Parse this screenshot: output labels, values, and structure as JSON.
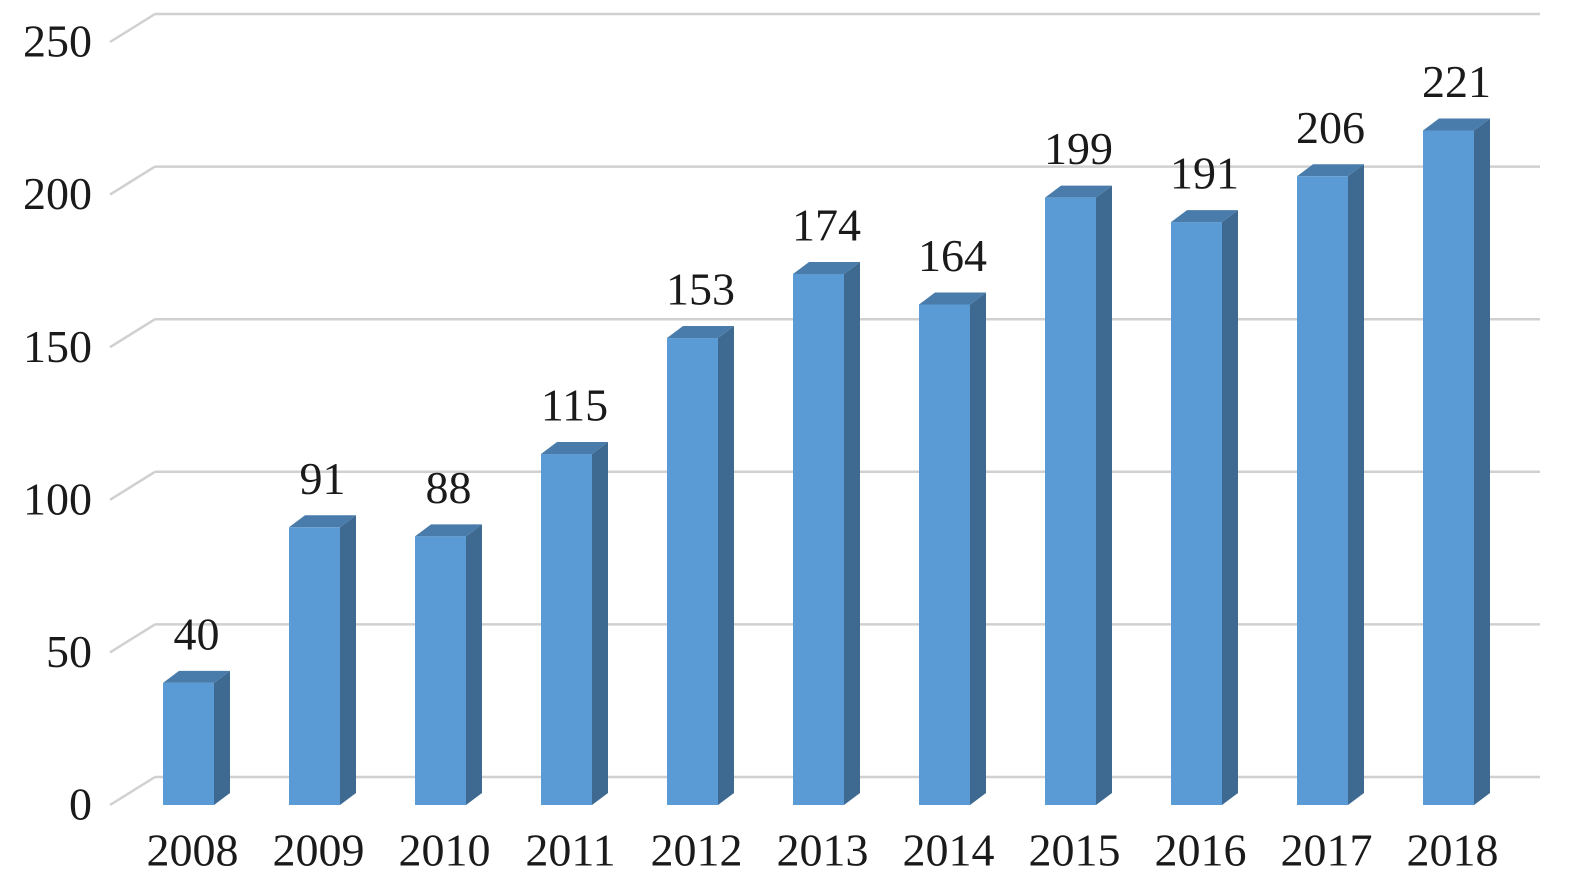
{
  "chart_data": {
    "type": "bar3d",
    "categories": [
      "2008",
      "2009",
      "2010",
      "2011",
      "2012",
      "2013",
      "2014",
      "2015",
      "2016",
      "2017",
      "2018"
    ],
    "values": [
      40,
      91,
      88,
      115,
      153,
      174,
      164,
      199,
      191,
      206,
      221
    ],
    "color": "#5b9bd5",
    "ylim": [
      0,
      250
    ],
    "yticks": [
      0,
      50,
      100,
      150,
      200,
      250
    ],
    "grid": true
  }
}
